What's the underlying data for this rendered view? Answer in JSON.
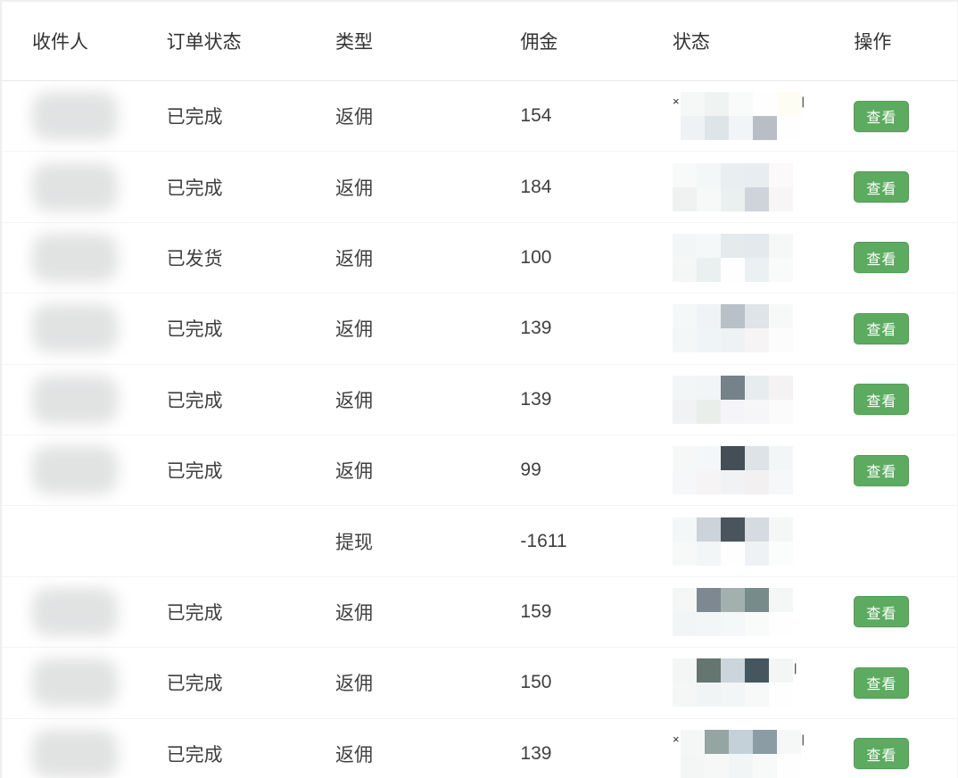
{
  "table": {
    "columns": [
      {
        "key": "recipient",
        "label": "收件人"
      },
      {
        "key": "order_status",
        "label": "订单状态"
      },
      {
        "key": "type",
        "label": "类型"
      },
      {
        "key": "commission",
        "label": "佣金"
      },
      {
        "key": "status",
        "label": "状态"
      },
      {
        "key": "action",
        "label": "操作"
      }
    ],
    "action_label": "查看",
    "rows": [
      {
        "recipient_redacted": true,
        "order_status": "已完成",
        "type": "返佣",
        "commission": "154",
        "status_redacted": true,
        "status_frag_left": "×",
        "status_frag_right": "|",
        "has_action": true,
        "mosaic": [
          [
            "#f5f8f6",
            "#eff3f1",
            "#f9fbfb",
            "#fefefe",
            "#fdfdf4"
          ],
          [
            "#eef2f4",
            "#dee5e9",
            "#f2f5f7",
            "#b9bec6",
            "#fefefe"
          ]
        ]
      },
      {
        "recipient_redacted": true,
        "order_status": "已完成",
        "type": "返佣",
        "commission": "184",
        "status_redacted": true,
        "status_frag_left": "",
        "status_frag_right": "",
        "has_action": true,
        "mosaic": [
          [
            "#f8fafa",
            "#f4f7f7",
            "#e9eef1",
            "#e7edf0",
            "#fbf9f9"
          ],
          [
            "#f0f2f2",
            "#f7f9f9",
            "#eaf0ef",
            "#ced4da",
            "#f7f5f6"
          ]
        ]
      },
      {
        "recipient_redacted": true,
        "order_status": "已发货",
        "type": "返佣",
        "commission": "100",
        "status_redacted": true,
        "status_frag_left": "",
        "status_frag_right": "",
        "has_action": true,
        "mosaic": [
          [
            "#f3f6f7",
            "#f5f8f8",
            "#e5eaed",
            "#e3e9ec",
            "#f6f8f8"
          ],
          [
            "#f4f7f6",
            "#eaefef",
            "#fefefe",
            "#ebf0f2",
            "#f9fbfb"
          ]
        ]
      },
      {
        "recipient_redacted": true,
        "order_status": "已完成",
        "type": "返佣",
        "commission": "139",
        "status_redacted": true,
        "status_frag_left": "",
        "status_frag_right": "",
        "has_action": true,
        "mosaic": [
          [
            "#f5f8f8",
            "#eff3f5",
            "#b8c0c8",
            "#dee4e8",
            "#f7f9f9"
          ],
          [
            "#f4f7f7",
            "#eff4f6",
            "#eff2f4",
            "#f7f4f5",
            "#fcfcfc"
          ]
        ]
      },
      {
        "recipient_redacted": true,
        "order_status": "已完成",
        "type": "返佣",
        "commission": "139",
        "status_redacted": true,
        "status_frag_left": "",
        "status_frag_right": "",
        "has_action": true,
        "mosaic": [
          [
            "#f3f6f6",
            "#f1f5f6",
            "#76828a",
            "#e7ecef",
            "#f5f2f4"
          ],
          [
            "#f1f2f4",
            "#e9eeeb",
            "#f5f5f9",
            "#f6f6f8",
            "#fbfbfb"
          ]
        ]
      },
      {
        "recipient_redacted": true,
        "order_status": "已完成",
        "type": "返佣",
        "commission": "99",
        "status_redacted": true,
        "status_frag_left": "",
        "status_frag_right": "",
        "has_action": true,
        "mosaic": [
          [
            "#f6f8f8",
            "#f4f7f7",
            "#434e56",
            "#dde3e7",
            "#f3f6f6"
          ],
          [
            "#f5f7f8",
            "#f7f4f6",
            "#f0f2f3",
            "#f3f0f2",
            "#f5f7f8"
          ]
        ]
      },
      {
        "recipient_redacted": false,
        "order_status": "",
        "type": "提现",
        "commission": "-1611",
        "status_redacted": true,
        "status_frag_left": "",
        "status_frag_right": "",
        "has_action": false,
        "mosaic": [
          [
            "#f4f7f7",
            "#ccd3da",
            "#49545c",
            "#d5dbe1",
            "#f5f7f7"
          ],
          [
            "#f7f9f9",
            "#f3f6f6",
            "#fefefe",
            "#eff2f5",
            "#fbfcfc"
          ]
        ]
      },
      {
        "recipient_redacted": true,
        "order_status": "已完成",
        "type": "返佣",
        "commission": "159",
        "status_redacted": true,
        "status_frag_left": "",
        "status_frag_right": "",
        "has_action": true,
        "mosaic": [
          [
            "#f4f7f6",
            "#7e8890",
            "#a2b1ad",
            "#778b8b",
            "#f5f7f6"
          ],
          [
            "#f1f5f5",
            "#f3f6f6",
            "#f5f8f8",
            "#f9fbfb",
            "#fefefe"
          ]
        ]
      },
      {
        "recipient_redacted": true,
        "order_status": "已完成",
        "type": "返佣",
        "commission": "150",
        "status_redacted": true,
        "status_frag_left": "",
        "status_frag_right": "|",
        "has_action": true,
        "mosaic": [
          [
            "#f3f6f5",
            "#657570",
            "#ccd4dc",
            "#46565e",
            "#f4f6f6"
          ],
          [
            "#f4f7f6",
            "#f1f4f5",
            "#f3f6f6",
            "#f7f9f9",
            "#fefefe"
          ]
        ]
      },
      {
        "recipient_redacted": true,
        "order_status": "已完成",
        "type": "返佣",
        "commission": "139",
        "status_redacted": true,
        "status_frag_left": "×",
        "status_frag_right": "|",
        "has_action": true,
        "mosaic": [
          [
            "#f5f7f6",
            "#95a5a1",
            "#c5d1d9",
            "#8c9ca4",
            "#f6f8f7"
          ],
          [
            "#f4f6f6",
            "#f6f8f8",
            "#f2f5f6",
            "#f8faf9",
            "#fefefe"
          ]
        ]
      }
    ]
  },
  "colors": {
    "action_button_green": "#5cab60",
    "action_button_border": "#519e56",
    "header_text": "#333333",
    "body_text": "#3f3f3f",
    "header_divider": "#e7e8e7",
    "row_divider": "#f3f4f4",
    "redaction_blob": "#d6d7d8"
  }
}
